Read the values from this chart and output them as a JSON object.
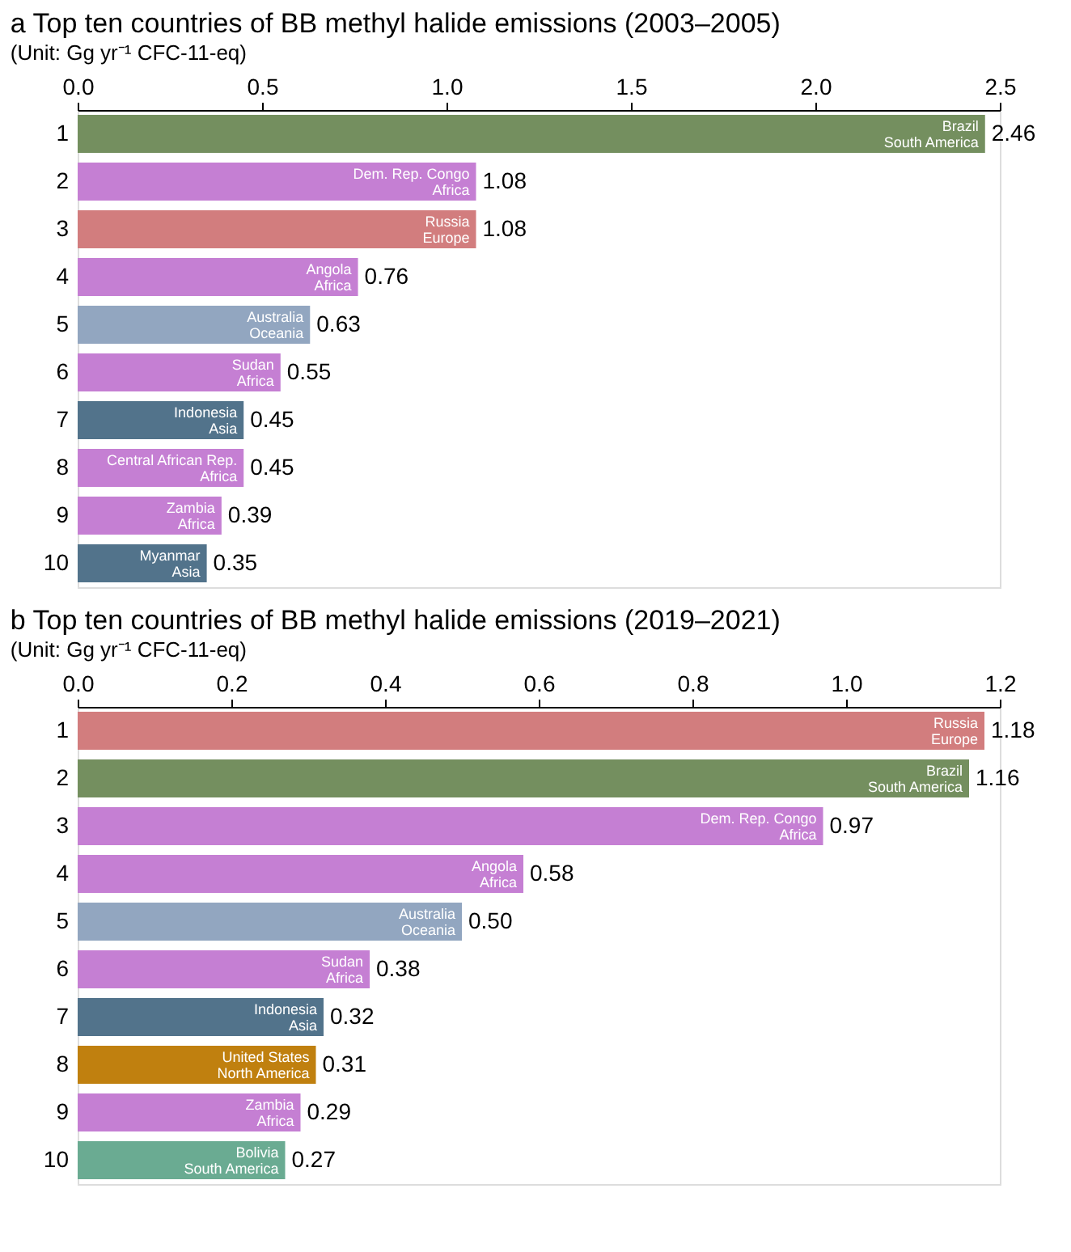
{
  "chart_data": [
    {
      "type": "bar",
      "orientation": "horizontal",
      "title": "a  Top ten countries of BB methyl halide emissions (2003–2005)",
      "subtitle": "(Unit: Gg yr⁻¹ CFC-11-eq)",
      "categories": [
        "1",
        "2",
        "3",
        "4",
        "5",
        "6",
        "7",
        "8",
        "9",
        "10"
      ],
      "values": [
        2.46,
        1.08,
        1.08,
        0.76,
        0.63,
        0.55,
        0.45,
        0.45,
        0.39,
        0.35
      ],
      "colors": [
        "#748f5f",
        "#c57fd3",
        "#d27d7e",
        "#c57fd3",
        "#92a6c0",
        "#c57fd3",
        "#52738b",
        "#c57fd3",
        "#c57fd3",
        "#52738b"
      ],
      "xlim": [
        0,
        2.5
      ],
      "xticks": [
        {
          "value": 0,
          "label": "0.0"
        },
        {
          "value": 0.5,
          "label": "0.5"
        },
        {
          "value": 1,
          "label": "1.0"
        },
        {
          "value": 1.5,
          "label": "1.5"
        },
        {
          "value": 2,
          "label": "2.0"
        },
        {
          "value": 2.5,
          "label": "2.5"
        }
      ],
      "value_labels": [
        "2.46",
        "1.08",
        "1.08",
        "0.76",
        "0.63",
        "0.55",
        "0.45",
        "0.45",
        "0.39",
        "0.35"
      ],
      "grid": false,
      "annotations": [
        {
          "text": "Brazil",
          "x": 2.46,
          "y": "1"
        },
        {
          "text": "South America",
          "x": 2.46,
          "y": "1"
        },
        {
          "text": "Dem. Rep. Congo",
          "x": 1.08,
          "y": "2"
        },
        {
          "text": "Africa",
          "x": 1.08,
          "y": "2"
        },
        {
          "text": "Russia",
          "x": 1.08,
          "y": "3"
        },
        {
          "text": "Europe",
          "x": 1.08,
          "y": "3"
        },
        {
          "text": "Angola",
          "x": 0.76,
          "y": "4"
        },
        {
          "text": "Africa",
          "x": 0.76,
          "y": "4"
        },
        {
          "text": "Australia",
          "x": 0.63,
          "y": "5"
        },
        {
          "text": "Oceania",
          "x": 0.63,
          "y": "5"
        },
        {
          "text": "Sudan",
          "x": 0.55,
          "y": "6"
        },
        {
          "text": "Africa",
          "x": 0.55,
          "y": "6"
        },
        {
          "text": "Indonesia",
          "x": 0.45,
          "y": "7"
        },
        {
          "text": "Asia",
          "x": 0.45,
          "y": "7"
        },
        {
          "text": "Central African Rep.",
          "x": 0.45,
          "y": "8"
        },
        {
          "text": "Africa",
          "x": 0.45,
          "y": "8"
        },
        {
          "text": "Zambia",
          "x": 0.39,
          "y": "9"
        },
        {
          "text": "Africa",
          "x": 0.39,
          "y": "9"
        },
        {
          "text": "Myanmar",
          "x": 0.35,
          "y": "10"
        },
        {
          "text": "Asia",
          "x": 0.35,
          "y": "10"
        }
      ]
    },
    {
      "type": "bar",
      "orientation": "horizontal",
      "title": "b  Top ten countries of BB methyl halide emissions (2019–2021)",
      "subtitle": "(Unit: Gg yr⁻¹ CFC-11-eq)",
      "categories": [
        "1",
        "2",
        "3",
        "4",
        "5",
        "6",
        "7",
        "8",
        "9",
        "10"
      ],
      "values": [
        1.18,
        1.16,
        0.97,
        0.58,
        0.5,
        0.38,
        0.32,
        0.31,
        0.29,
        0.27
      ],
      "colors": [
        "#d27d7e",
        "#748f5f",
        "#c57fd3",
        "#c57fd3",
        "#92a6c0",
        "#c57fd3",
        "#52738b",
        "#c0800f",
        "#c57fd3",
        "#6aab92"
      ],
      "xlim": [
        0,
        1.2
      ],
      "xticks": [
        {
          "value": 0,
          "label": "0.0"
        },
        {
          "value": 0.2,
          "label": "0.2"
        },
        {
          "value": 0.4,
          "label": "0.4"
        },
        {
          "value": 0.6,
          "label": "0.6"
        },
        {
          "value": 0.8,
          "label": "0.8"
        },
        {
          "value": 1,
          "label": "1.0"
        },
        {
          "value": 1.2,
          "label": "1.2"
        }
      ],
      "value_labels": [
        "1.18",
        "1.16",
        "0.97",
        "0.58",
        "0.50",
        "0.38",
        "0.32",
        "0.31",
        "0.29",
        "0.27"
      ],
      "grid": false,
      "annotations": [
        {
          "text": "Russia",
          "x": 1.18,
          "y": "1"
        },
        {
          "text": "Europe",
          "x": 1.18,
          "y": "1"
        },
        {
          "text": "Brazil",
          "x": 1.16,
          "y": "2"
        },
        {
          "text": "South America",
          "x": 1.16,
          "y": "2"
        },
        {
          "text": "Dem. Rep. Congo",
          "x": 0.97,
          "y": "3"
        },
        {
          "text": "Africa",
          "x": 0.97,
          "y": "3"
        },
        {
          "text": "Angola",
          "x": 0.58,
          "y": "4"
        },
        {
          "text": "Africa",
          "x": 0.58,
          "y": "4"
        },
        {
          "text": "Australia",
          "x": 0.5,
          "y": "5"
        },
        {
          "text": "Oceania",
          "x": 0.5,
          "y": "5"
        },
        {
          "text": "Sudan",
          "x": 0.38,
          "y": "6"
        },
        {
          "text": "Africa",
          "x": 0.38,
          "y": "6"
        },
        {
          "text": "Indonesia",
          "x": 0.32,
          "y": "7"
        },
        {
          "text": "Asia",
          "x": 0.32,
          "y": "7"
        },
        {
          "text": "United States",
          "x": 0.31,
          "y": "8"
        },
        {
          "text": "North America",
          "x": 0.31,
          "y": "8"
        },
        {
          "text": "Zambia",
          "x": 0.29,
          "y": "9"
        },
        {
          "text": "Africa",
          "x": 0.29,
          "y": "9"
        },
        {
          "text": "Bolivia",
          "x": 0.27,
          "y": "10"
        },
        {
          "text": "South America",
          "x": 0.27,
          "y": "10"
        }
      ]
    }
  ]
}
